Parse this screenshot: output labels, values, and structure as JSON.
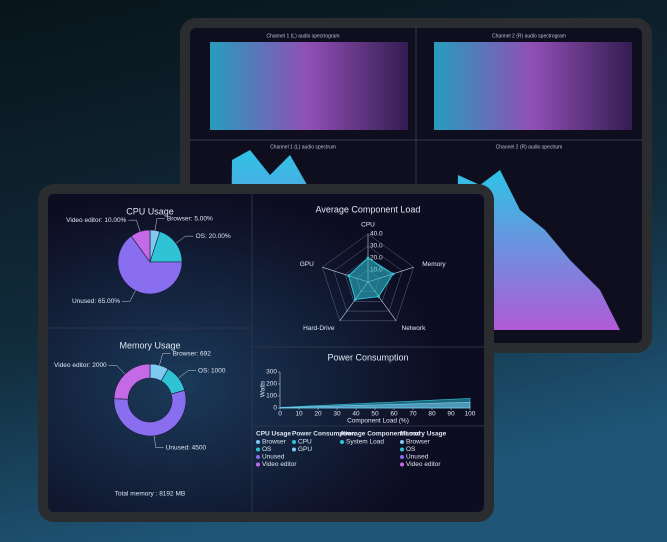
{
  "back_tablet": {
    "panels": [
      {
        "title": "Channel 1 (L) audio spectrogram"
      },
      {
        "title": "Channel 2 (R) audio spectrogram"
      },
      {
        "title": "Channel 1 (L) audio spectrum"
      },
      {
        "title": "Channel 2 (R) audio spectrum"
      }
    ]
  },
  "cpu_usage": {
    "type": "pie",
    "title": "CPU Usage",
    "slices": [
      {
        "label": "Browser: 5.00%",
        "value": 5,
        "color": "#7fc8f0"
      },
      {
        "label": "OS: 20.00%",
        "value": 20,
        "color": "#2ec4d6"
      },
      {
        "label": "Unused: 65.00%",
        "value": 65,
        "color": "#8a6ef0"
      },
      {
        "label": "Video editor: 10.00%",
        "value": 10,
        "color": "#c46ae6"
      }
    ]
  },
  "memory_usage": {
    "type": "donut",
    "title": "Memory Usage",
    "total": "Total memory : 8192 MB",
    "slices": [
      {
        "label": "Browser: 692",
        "value": 692,
        "color": "#7fc8f0"
      },
      {
        "label": "OS: 1000",
        "value": 1000,
        "color": "#2ec4d6"
      },
      {
        "label": "Unused: 4500",
        "value": 4500,
        "color": "#8a6ef0"
      },
      {
        "label": "Video editor: 2000",
        "value": 2000,
        "color": "#c46ae6"
      }
    ]
  },
  "component_load": {
    "type": "radar",
    "title": "Average Component Load",
    "axes": [
      "CPU",
      "Memory",
      "Network",
      "Hard-Drive",
      "GPU"
    ],
    "rlim": [
      0,
      40
    ],
    "rticks": [
      {
        "value": 10,
        "label": "10.0"
      },
      {
        "value": 20,
        "label": "20.0"
      },
      {
        "value": 30,
        "label": "30.0"
      },
      {
        "value": 40,
        "label": "40.0"
      }
    ],
    "series": [
      {
        "name": "System Load",
        "color": "#2ec4d6",
        "values": [
          20,
          22,
          15,
          18,
          17
        ]
      }
    ]
  },
  "power": {
    "type": "area",
    "title": "Power Consumption",
    "x_label": "Component Load (%)",
    "y_label": "Watts",
    "x": [
      0,
      20,
      40,
      60,
      80,
      100
    ],
    "xlim": [
      0,
      100
    ],
    "xticks": [
      0,
      10,
      20,
      30,
      40,
      50,
      60,
      70,
      80,
      90,
      100
    ],
    "ylim": [
      0,
      300
    ],
    "yticks": [
      0,
      100,
      200,
      300
    ],
    "series": [
      {
        "name": "CPU",
        "color": "#2ec4d6",
        "values": [
          5,
          20,
          35,
          50,
          65,
          80
        ]
      },
      {
        "name": "GPU",
        "color": "#7fc8f0",
        "values": [
          3,
          12,
          21,
          30,
          39,
          48
        ]
      }
    ]
  },
  "legend": {
    "groups": [
      {
        "title": "CPU Usage",
        "items": [
          {
            "name": "Browser",
            "color": "#7fc8f0"
          },
          {
            "name": "OS",
            "color": "#2ec4d6"
          },
          {
            "name": "Unused",
            "color": "#8a6ef0"
          },
          {
            "name": "Video editor",
            "color": "#c46ae6"
          }
        ]
      },
      {
        "title": "Power Consumption",
        "items": [
          {
            "name": "CPU",
            "color": "#2ec4d6"
          },
          {
            "name": "GPU",
            "color": "#7fc8f0"
          }
        ]
      },
      {
        "title": "Average Component Load",
        "items": [
          {
            "name": "System Load",
            "color": "#2ec4d6"
          }
        ]
      },
      {
        "title": "Memory Usage",
        "items": [
          {
            "name": "Browser",
            "color": "#7fc8f0"
          },
          {
            "name": "OS",
            "color": "#2ec4d6"
          },
          {
            "name": "Unused",
            "color": "#8a6ef0"
          },
          {
            "name": "Video editor",
            "color": "#c46ae6"
          }
        ]
      }
    ]
  }
}
